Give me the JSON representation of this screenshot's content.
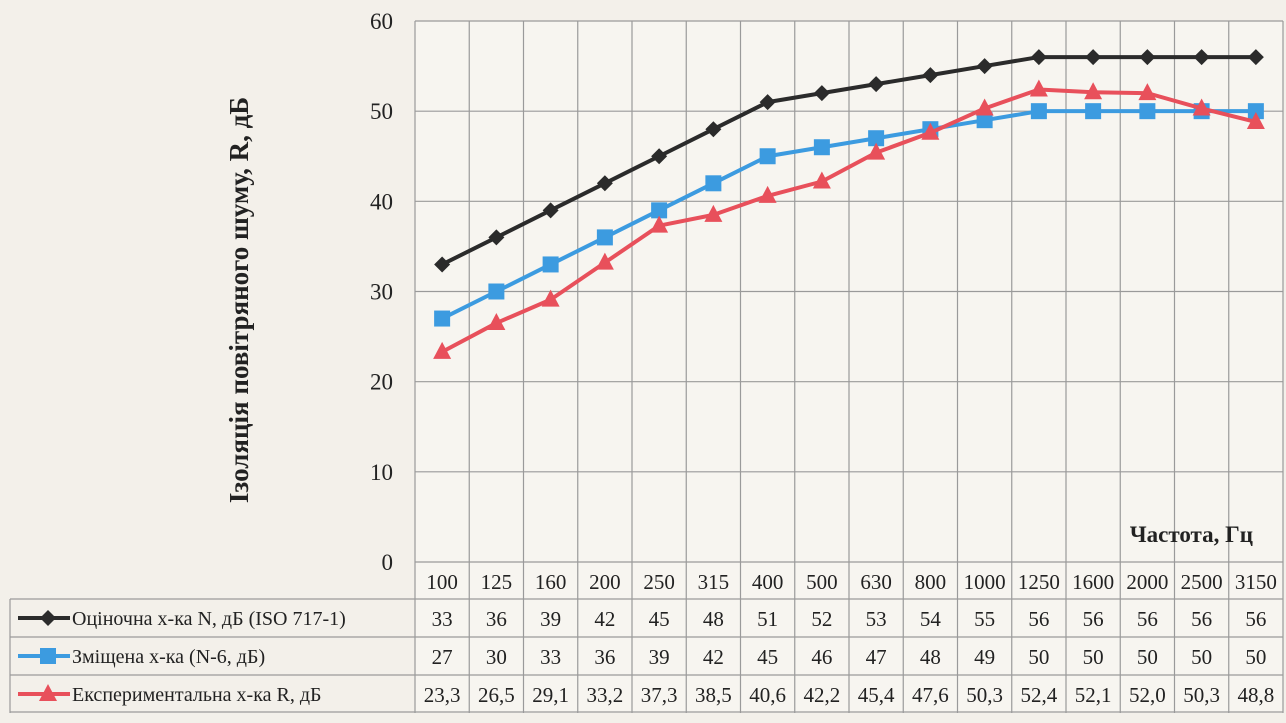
{
  "chart_data": {
    "type": "line",
    "xlabel": "Частота, Гц",
    "ylabel": "Ізоляція повітряного шуму, R, дБ",
    "ylim": [
      0,
      60
    ],
    "yticks": [
      0,
      10,
      20,
      30,
      40,
      50,
      60
    ],
    "grid": true,
    "legend_placement": "data-table-left",
    "categories": [
      "100",
      "125",
      "160",
      "200",
      "250",
      "315",
      "400",
      "500",
      "630",
      "800",
      "1000",
      "1250",
      "1600",
      "2000",
      "2500",
      "3150"
    ],
    "series": [
      {
        "name": "Оціночна х-ка N,  дБ (ISO 717-1)",
        "color": "#2b2b2b",
        "marker": "diamond",
        "values": [
          33,
          36,
          39,
          42,
          45,
          48,
          51,
          52,
          53,
          54,
          55,
          56,
          56,
          56,
          56,
          56
        ],
        "labels": [
          "33",
          "36",
          "39",
          "42",
          "45",
          "48",
          "51",
          "52",
          "53",
          "54",
          "55",
          "56",
          "56",
          "56",
          "56",
          "56"
        ]
      },
      {
        "name": "Зміщена х-ка (N-6, дБ)",
        "color": "#3c9be0",
        "marker": "square",
        "values": [
          27,
          30,
          33,
          36,
          39,
          42,
          45,
          46,
          47,
          48,
          49,
          50,
          50,
          50,
          50,
          50
        ],
        "labels": [
          "27",
          "30",
          "33",
          "36",
          "39",
          "42",
          "45",
          "46",
          "47",
          "48",
          "49",
          "50",
          "50",
          "50",
          "50",
          "50"
        ]
      },
      {
        "name": "Експериментальна х-ка R, дБ",
        "color": "#e8505b",
        "marker": "triangle",
        "values": [
          23.3,
          26.5,
          29.1,
          33.2,
          37.3,
          38.5,
          40.6,
          42.2,
          45.4,
          47.6,
          50.3,
          52.4,
          52.1,
          52.0,
          50.3,
          48.8
        ],
        "labels": [
          "23,3",
          "26,5",
          "29,1",
          "33,2",
          "37,3",
          "38,5",
          "40,6",
          "42,2",
          "45,4",
          "47,6",
          "50,3",
          "52,4",
          "52,1",
          "52,0",
          "50,3",
          "48,8"
        ]
      }
    ]
  }
}
